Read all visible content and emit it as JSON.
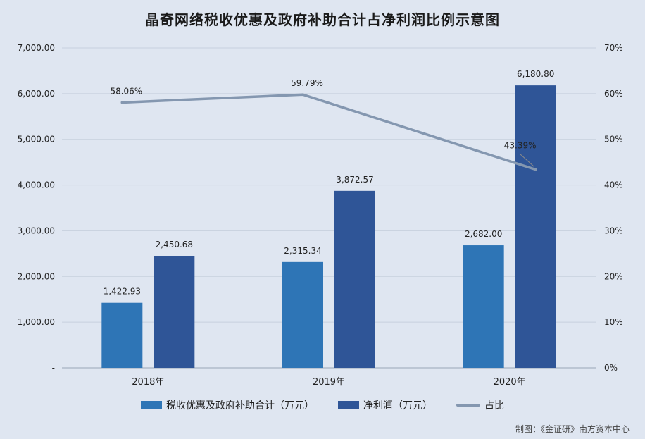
{
  "chart_data": {
    "type": "bar",
    "title": "晶奇网络税收优惠及政府补助合计占净利润比例示意图",
    "categories": [
      "2018年",
      "2019年",
      "2020年"
    ],
    "series": [
      {
        "name": "税收优惠及政府补助合计（万元）",
        "axis": "left",
        "kind": "bar",
        "color": "#2e75b6",
        "values": [
          1422.93,
          2315.34,
          2682.0
        ],
        "labels": [
          "1,422.93",
          "2,315.34",
          "2,682.00"
        ]
      },
      {
        "name": "净利润（万元）",
        "axis": "left",
        "kind": "bar",
        "color": "#2f5597",
        "values": [
          2450.68,
          3872.57,
          6180.8
        ],
        "labels": [
          "2,450.68",
          "3,872.57",
          "6,180.80"
        ]
      },
      {
        "name": "占比",
        "axis": "right",
        "kind": "line",
        "color": "#8497b0",
        "values": [
          58.06,
          59.79,
          43.39
        ],
        "labels": [
          "58.06%",
          "59.79%",
          "43.39%"
        ]
      }
    ],
    "y_left": {
      "min": 0,
      "max": 7000,
      "ticks": [
        0,
        1000,
        2000,
        3000,
        4000,
        5000,
        6000,
        7000
      ],
      "tick_labels": [
        "-",
        "1,000.00",
        "2,000.00",
        "3,000.00",
        "4,000.00",
        "5,000.00",
        "6,000.00",
        "7,000.00"
      ]
    },
    "y_right": {
      "min": 0,
      "max": 70,
      "ticks": [
        0,
        10,
        20,
        30,
        40,
        50,
        60,
        70
      ],
      "tick_labels": [
        "0%",
        "10%",
        "20%",
        "30%",
        "40%",
        "50%",
        "60%",
        "70%"
      ]
    },
    "grid": true,
    "legend_position": "bottom"
  },
  "credit": "制图：《金证研》南方资本中心"
}
